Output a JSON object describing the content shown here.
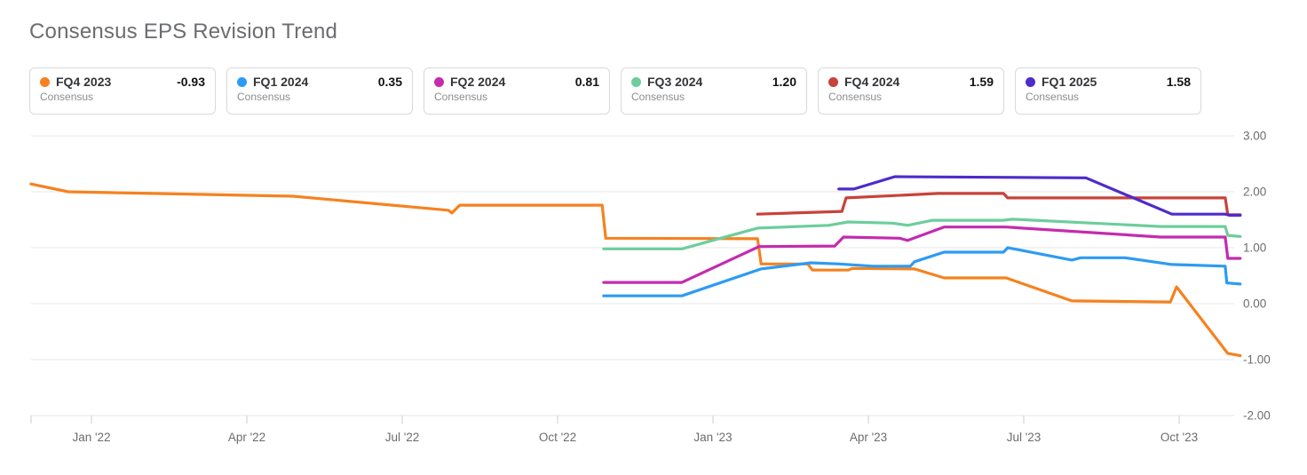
{
  "title": "Consensus EPS Revision Trend",
  "chart_data": {
    "type": "line",
    "title": "Consensus EPS Revision Trend",
    "x_axis": {
      "unit": "months since Jan 2022",
      "tick_labels": [
        "Jan '22",
        "Apr '22",
        "Jul '22",
        "Oct '22",
        "Jan '23",
        "Apr '23",
        "Jul '23",
        "Oct '23"
      ],
      "tick_positions_months": [
        0,
        3,
        6,
        9,
        12,
        15,
        18,
        21
      ],
      "range_months": [
        -1.17,
        22.6
      ]
    },
    "y_axis": {
      "position": "right",
      "tick_labels": [
        "3.00",
        "2.00",
        "1.00",
        "0.00",
        "-1.00",
        "-2.00"
      ],
      "tick_values": [
        3,
        2,
        1,
        0,
        -1,
        -2
      ],
      "range": [
        -2.0,
        3.0
      ]
    },
    "grid": true,
    "legend_sublabel": "Consensus",
    "series": [
      {
        "name": "FQ4 2023",
        "sublabel": "Consensus",
        "value": "-0.93",
        "color": "#f5821f",
        "points": [
          [
            -1.17,
            2.14
          ],
          [
            -0.45,
            2.0
          ],
          [
            3.89,
            1.92
          ],
          [
            6.89,
            1.67
          ],
          [
            6.96,
            1.62
          ],
          [
            7.11,
            1.76
          ],
          [
            9.86,
            1.76
          ],
          [
            9.93,
            1.17
          ],
          [
            12.86,
            1.16
          ],
          [
            12.93,
            0.71
          ],
          [
            13.83,
            0.71
          ],
          [
            13.92,
            0.6
          ],
          [
            14.61,
            0.6
          ],
          [
            14.69,
            0.63
          ],
          [
            15.89,
            0.62
          ],
          [
            16.46,
            0.46
          ],
          [
            17.66,
            0.46
          ],
          [
            18.93,
            0.05
          ],
          [
            20.83,
            0.03
          ],
          [
            20.95,
            0.3
          ],
          [
            21.94,
            -0.89
          ],
          [
            22.18,
            -0.93
          ]
        ]
      },
      {
        "name": "FQ1 2024",
        "sublabel": "Consensus",
        "value": "0.35",
        "color": "#2d9bf3",
        "points": [
          [
            9.89,
            0.14
          ],
          [
            11.4,
            0.14
          ],
          [
            12.93,
            0.62
          ],
          [
            13.89,
            0.73
          ],
          [
            14.44,
            0.71
          ],
          [
            15.09,
            0.67
          ],
          [
            15.81,
            0.67
          ],
          [
            15.89,
            0.75
          ],
          [
            16.46,
            0.92
          ],
          [
            17.61,
            0.92
          ],
          [
            17.69,
            1.0
          ],
          [
            18.93,
            0.78
          ],
          [
            19.1,
            0.82
          ],
          [
            19.95,
            0.82
          ],
          [
            20.86,
            0.7
          ],
          [
            21.89,
            0.67
          ],
          [
            21.92,
            0.37
          ],
          [
            22.18,
            0.35
          ]
        ]
      },
      {
        "name": "FQ2 2024",
        "sublabel": "Consensus",
        "value": "0.81",
        "color": "#c42bae",
        "points": [
          [
            9.89,
            0.38
          ],
          [
            11.4,
            0.38
          ],
          [
            12.89,
            1.02
          ],
          [
            14.35,
            1.03
          ],
          [
            14.52,
            1.19
          ],
          [
            15.6,
            1.17
          ],
          [
            15.76,
            1.13
          ],
          [
            16.46,
            1.37
          ],
          [
            17.66,
            1.37
          ],
          [
            20.64,
            1.19
          ],
          [
            21.89,
            1.19
          ],
          [
            21.94,
            0.81
          ],
          [
            22.18,
            0.81
          ]
        ]
      },
      {
        "name": "FQ3 2024",
        "sublabel": "Consensus",
        "value": "1.20",
        "color": "#6dcd9c",
        "points": [
          [
            9.89,
            0.98
          ],
          [
            11.4,
            0.98
          ],
          [
            12.86,
            1.35
          ],
          [
            14.23,
            1.4
          ],
          [
            14.61,
            1.46
          ],
          [
            15.46,
            1.44
          ],
          [
            15.76,
            1.4
          ],
          [
            16.24,
            1.49
          ],
          [
            17.61,
            1.49
          ],
          [
            17.78,
            1.51
          ],
          [
            20.64,
            1.38
          ],
          [
            21.89,
            1.38
          ],
          [
            21.94,
            1.22
          ],
          [
            22.18,
            1.2
          ]
        ]
      },
      {
        "name": "FQ4 2024",
        "sublabel": "Consensus",
        "value": "1.59",
        "color": "#c8423a",
        "points": [
          [
            12.86,
            1.6
          ],
          [
            14.49,
            1.65
          ],
          [
            14.57,
            1.89
          ],
          [
            16.35,
            1.97
          ],
          [
            17.61,
            1.97
          ],
          [
            17.69,
            1.89
          ],
          [
            21.89,
            1.89
          ],
          [
            21.94,
            1.59
          ],
          [
            22.18,
            1.59
          ]
        ]
      },
      {
        "name": "FQ1 2025",
        "sublabel": "Consensus",
        "value": "1.58",
        "color": "#4e2bcb",
        "points": [
          [
            14.43,
            2.05
          ],
          [
            14.72,
            2.05
          ],
          [
            15.51,
            2.27
          ],
          [
            19.2,
            2.25
          ],
          [
            20.86,
            1.6
          ],
          [
            21.89,
            1.6
          ],
          [
            21.97,
            1.58
          ],
          [
            22.18,
            1.58
          ]
        ]
      }
    ]
  },
  "style": {
    "grid_color": "#e7e7e7",
    "axis_color": "#d4d4d4",
    "tick_color": "#cccccc",
    "axis_label_color": "#6a6c6f",
    "title_color": "#6b6d70"
  }
}
